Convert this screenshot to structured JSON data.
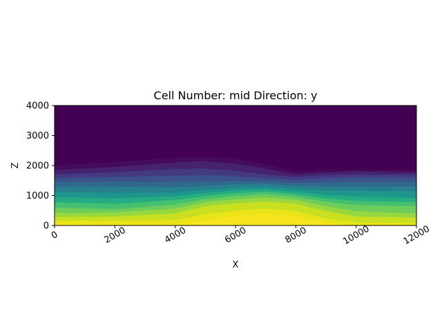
{
  "chart_data": {
    "type": "heatmap",
    "title": "Cell Number: mid Direction: y",
    "xlabel": "X",
    "ylabel": "Z",
    "xlim": [
      0,
      12000
    ],
    "ylim": [
      0,
      4000
    ],
    "x_ticks": [
      "0",
      "2000",
      "4000",
      "6000",
      "8000",
      "10000",
      "12000"
    ],
    "y_ticks": [
      "0",
      "1000",
      "2000",
      "3000",
      "4000"
    ],
    "x_tick_rotation": 30,
    "grid": false,
    "legend": "none",
    "colormap": "viridis",
    "colors": {
      "background": "#440154",
      "layers": [
        "#450c5b",
        "#47226e",
        "#443a83",
        "#3b528b",
        "#31688e",
        "#27808e",
        "#1f968b",
        "#25ac82",
        "#45bf70",
        "#6ccd5a",
        "#98d83e",
        "#c8e020",
        "#e8e419",
        "#f7e31e"
      ]
    },
    "layer_boundaries": {
      "x": [
        0,
        2000,
        4000,
        5000,
        6000,
        7000,
        8000,
        9000,
        10000,
        12000
      ],
      "z_tops": [
        [
          2000,
          2120,
          2260,
          2300,
          2230,
          2030,
          1800,
          1850,
          1880,
          1850
        ],
        [
          1850,
          1950,
          2100,
          2150,
          2060,
          1900,
          1700,
          1770,
          1800,
          1780
        ],
        [
          1700,
          1780,
          1880,
          1900,
          1820,
          1700,
          1620,
          1680,
          1700,
          1700
        ],
        [
          1580,
          1620,
          1660,
          1680,
          1640,
          1580,
          1520,
          1580,
          1600,
          1600
        ],
        [
          1450,
          1460,
          1460,
          1470,
          1480,
          1470,
          1420,
          1440,
          1450,
          1460
        ],
        [
          1300,
          1290,
          1280,
          1320,
          1370,
          1380,
          1330,
          1300,
          1300,
          1300
        ],
        [
          1120,
          1080,
          1100,
          1190,
          1260,
          1280,
          1220,
          1160,
          1150,
          1140
        ],
        [
          950,
          900,
          980,
          1080,
          1170,
          1200,
          1130,
          1020,
          960,
          920
        ],
        [
          780,
          720,
          850,
          980,
          1080,
          1130,
          1050,
          900,
          820,
          780
        ],
        [
          600,
          540,
          700,
          880,
          980,
          1040,
          960,
          790,
          680,
          640
        ],
        [
          420,
          430,
          560,
          780,
          870,
          930,
          860,
          640,
          470,
          400
        ],
        [
          280,
          300,
          400,
          640,
          740,
          800,
          720,
          480,
          300,
          260
        ],
        [
          160,
          160,
          180,
          380,
          500,
          570,
          480,
          230,
          100,
          80
        ],
        [
          60,
          40,
          40,
          160,
          320,
          420,
          300,
          80,
          0,
          0
        ]
      ]
    }
  }
}
